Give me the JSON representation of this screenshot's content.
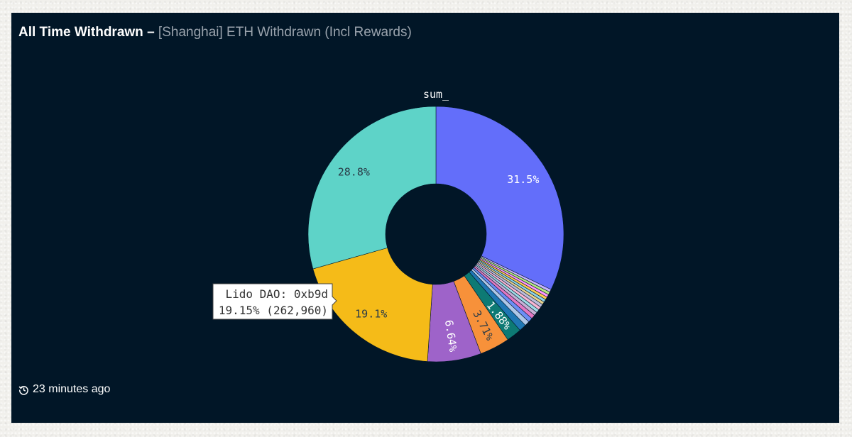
{
  "header": {
    "title": "All Time Withdrawn",
    "separator": "–",
    "subtitle": "[Shanghai] ETH Withdrawn (Incl Rewards)"
  },
  "footer": {
    "updated_text": "23 minutes ago",
    "icon": "history-icon"
  },
  "tooltip": {
    "name": "Lido DAO: 0xb9d",
    "detail": "19.15% (262,960)"
  },
  "chart_data": {
    "type": "pie",
    "hole": true,
    "title": "sum_",
    "slices": [
      {
        "label": "31.5%",
        "value": 31.5,
        "color": "#636efa"
      },
      {
        "label": "",
        "value": 0.35,
        "color": "#c7b3ff"
      },
      {
        "label": "",
        "value": 0.35,
        "color": "#b6e880"
      },
      {
        "label": "",
        "value": 0.35,
        "color": "#ff97ff"
      },
      {
        "label": "",
        "value": 0.35,
        "color": "#fecb52"
      },
      {
        "label": "",
        "value": 0.35,
        "color": "#8fd3e8"
      },
      {
        "label": "",
        "value": 0.35,
        "color": "#e8d28f"
      },
      {
        "label": "",
        "value": 0.4,
        "color": "#bcbddc"
      },
      {
        "label": "",
        "value": 0.4,
        "color": "#f7b6d2"
      },
      {
        "label": "",
        "value": 0.4,
        "color": "#9edae5"
      },
      {
        "label": "",
        "value": 0.45,
        "color": "#c5b0d5"
      },
      {
        "label": "",
        "value": 0.5,
        "color": "#e377c2"
      },
      {
        "label": "",
        "value": 0.55,
        "color": "#6c8ef5"
      },
      {
        "label": "",
        "value": 0.6,
        "color": "#aec7e8"
      },
      {
        "label": "",
        "value": 0.9,
        "color": "#1f77b4"
      },
      {
        "label": "1.88%",
        "value": 1.88,
        "color": "#0d7a74"
      },
      {
        "label": "3.71%",
        "value": 3.71,
        "color": "#f7913a"
      },
      {
        "label": "6.64%",
        "value": 6.64,
        "color": "#9e63c9"
      },
      {
        "label": "19.1%",
        "value": 19.15,
        "color": "#f5bb18"
      },
      {
        "label": "28.8%",
        "value": 28.8,
        "color": "#5ed3c8"
      }
    ]
  }
}
